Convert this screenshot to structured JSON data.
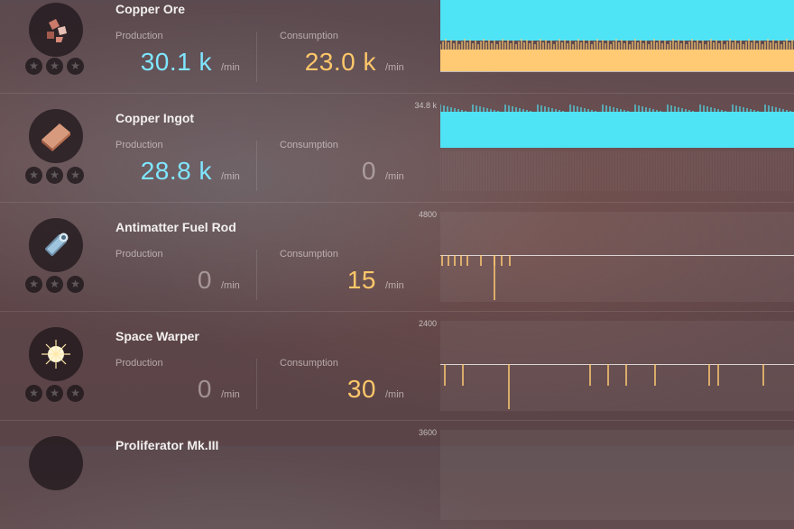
{
  "colors": {
    "production": "#4fe3f6",
    "consumption": "#ffca73"
  },
  "rows": [
    {
      "name": "Copper Ore",
      "icon": "copper-ore-icon",
      "production_label": "Production",
      "production": "30.1 k",
      "production_unit": "/min",
      "consumption_label": "Consumption",
      "consumption": "23.0 k",
      "consumption_unit": "/min",
      "chart_max": "",
      "chart_kind": "dual"
    },
    {
      "name": "Copper Ingot",
      "icon": "copper-ingot-icon",
      "production_label": "Production",
      "production": "28.8 k",
      "production_unit": "/min",
      "consumption_label": "Consumption",
      "consumption": "0",
      "consumption_unit": "/min",
      "chart_max": "34.8 k",
      "chart_kind": "production"
    },
    {
      "name": "Antimatter Fuel Rod",
      "icon": "antimatter-fuel-rod-icon",
      "production_label": "Production",
      "production": "0",
      "production_unit": "/min",
      "consumption_label": "Consumption",
      "consumption": "15",
      "consumption_unit": "/min",
      "chart_max": "4800",
      "chart_kind": "spikes"
    },
    {
      "name": "Space Warper",
      "icon": "space-warper-icon",
      "production_label": "Production",
      "production": "0",
      "production_unit": "/min",
      "consumption_label": "Consumption",
      "consumption": "30",
      "consumption_unit": "/min",
      "chart_max": "2400",
      "chart_kind": "spikes"
    },
    {
      "name": "Proliferator Mk.III",
      "icon": "proliferator-icon",
      "production_label": "",
      "production": "",
      "production_unit": "",
      "consumption_label": "",
      "consumption": "",
      "consumption_unit": "",
      "chart_max": "3600",
      "chart_kind": "none"
    }
  ]
}
